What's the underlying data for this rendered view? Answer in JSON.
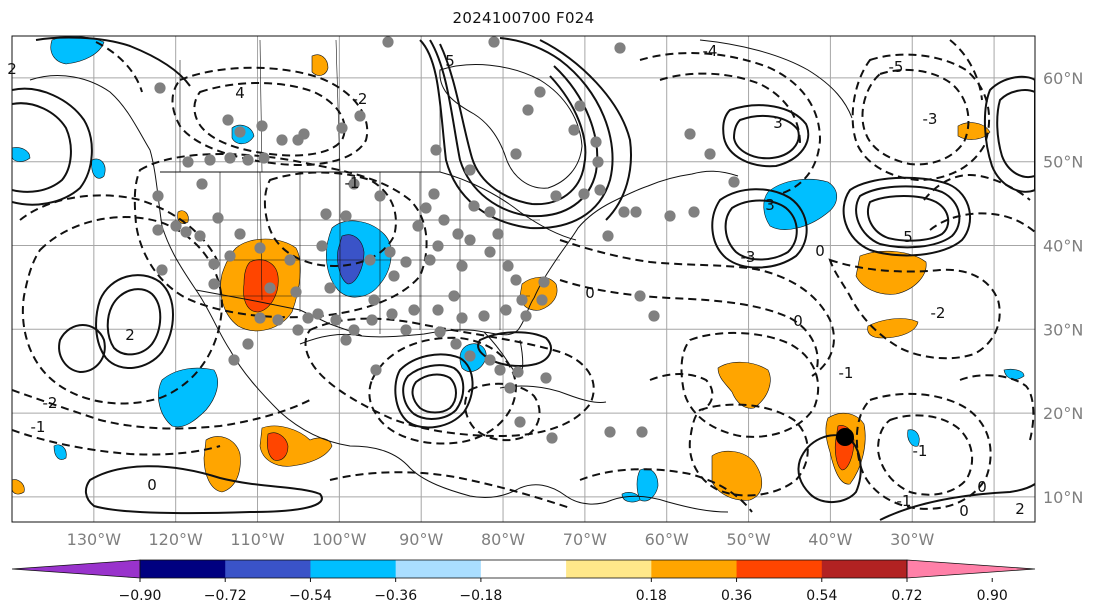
{
  "title": "2024100700 F024",
  "map": {
    "projection": "lat-lon",
    "lon_range": [
      -140,
      -15
    ],
    "lat_range": [
      7,
      65
    ],
    "longitude_labels": [
      "130°W",
      "120°W",
      "110°W",
      "100°W",
      "90°W",
      "80°W",
      "70°W",
      "60°W",
      "50°W",
      "40°W",
      "30°W"
    ],
    "latitude_labels": [
      "60°N",
      "50°N",
      "40°N",
      "30°N",
      "20°N",
      "10°N"
    ],
    "grid": true,
    "contour_labels": [
      "5",
      "4",
      "3",
      "2",
      "-5",
      "-4",
      "-3",
      "-2",
      "-1",
      "0",
      "2",
      "3",
      "5",
      "-3",
      "-2",
      "0",
      "-1",
      "0",
      "0",
      "-1",
      "0",
      "-1",
      "2",
      "-2",
      "-1",
      "0"
    ],
    "observation_marker_color": "#808080",
    "storm_marker_color": "#000000"
  },
  "colorbar": {
    "ticks": [
      "−0.90",
      "−0.72",
      "−0.54",
      "−0.36",
      "−0.18",
      "0.18",
      "0.36",
      "0.54",
      "0.72",
      "0.90"
    ],
    "colors": [
      "#9933cc",
      "#000080",
      "#3a53c8",
      "#00bfff",
      "#aadeff",
      "#ffffff",
      "#ffe88a",
      "#ffa500",
      "#ff4500",
      "#b22222",
      "#ff80a8"
    ],
    "extend": "both"
  }
}
